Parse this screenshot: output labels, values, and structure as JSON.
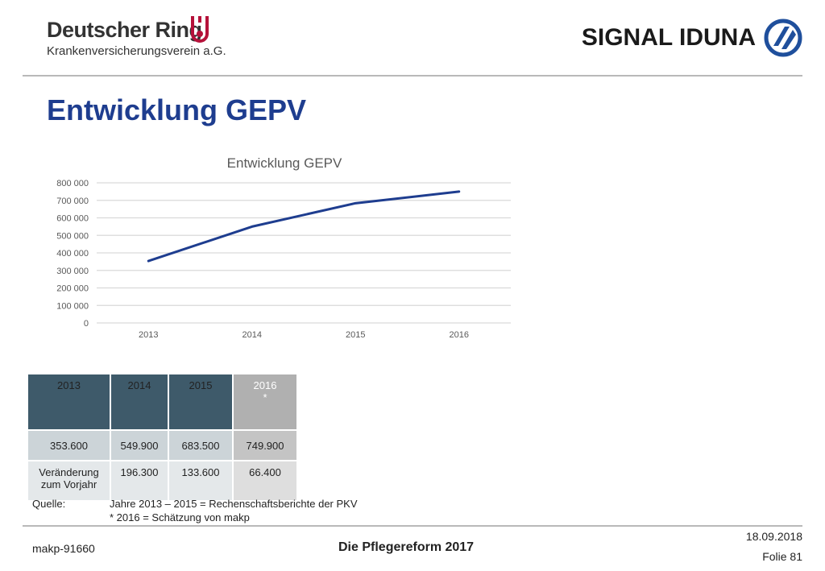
{
  "header": {
    "left_logo": {
      "name": "Deutscher Ring",
      "subtitle": "Krankenversicherungsverein a.G."
    },
    "right_logo": {
      "name": "SIGNAL IDUNA"
    }
  },
  "page_title": "Entwicklung GEPV",
  "chart_data": {
    "type": "line",
    "title": "Entwicklung GEPV",
    "categories": [
      "2013",
      "2014",
      "2015",
      "2016"
    ],
    "series": [
      {
        "values": [
          353600,
          549900,
          683500,
          749900
        ],
        "color": "#1e3d8f"
      }
    ],
    "ylim": [
      0,
      800000
    ],
    "yticks": [
      0,
      100000,
      200000,
      300000,
      400000,
      500000,
      600000,
      700000,
      800000
    ],
    "ytick_labels": [
      "0",
      "100 000",
      "200 000",
      "300 000",
      "400 000",
      "500 000",
      "600 000",
      "700 000",
      "800 000"
    ],
    "xlabel": "",
    "ylabel": "",
    "grid": true,
    "legend": "none"
  },
  "table": {
    "headers": [
      {
        "line1": "2013",
        "line2": ""
      },
      {
        "line1": "2014",
        "line2": ""
      },
      {
        "line1": "2015",
        "line2": ""
      },
      {
        "line1": "2016",
        "line2": "*"
      }
    ],
    "row1": [
      "353.600",
      "549.900",
      "683.500",
      "749.900"
    ],
    "row2": {
      "label_line1": "Veränderung",
      "label_line2": "zum Vorjahr",
      "values": [
        "196.300",
        "133.600",
        "66.400"
      ]
    }
  },
  "source": {
    "label": "Quelle:",
    "line1": "Jahre 2013 – 2015 = Rechenschaftsberichte der PKV",
    "line2": "* 2016 = Schätzung von makp"
  },
  "footer": {
    "id": "makp-91660",
    "title": "Die Pflegereform 2017",
    "date": "18.09.2018",
    "slide": "Folie 81"
  },
  "colors": {
    "title_blue": "#1e3d8f",
    "table_header": "#3e5a6a",
    "table_header_alt": "#b0b0b0",
    "dr_red": "#b5123a",
    "si_blue": "#1f4f9c"
  }
}
